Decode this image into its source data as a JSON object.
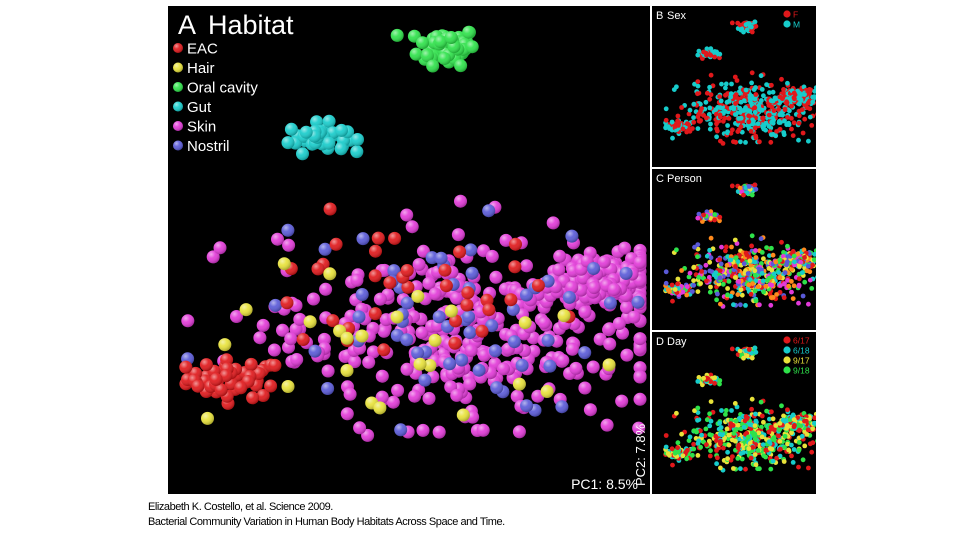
{
  "figure": {
    "panels": [
      {
        "id": "A",
        "title_letter": "A",
        "title": "Habitat",
        "x_axis_label": "PC1: 8.5%"
      },
      {
        "id": "B",
        "title_letter": "B",
        "title": "Sex"
      },
      {
        "id": "C",
        "title_letter": "C",
        "title": "Person"
      },
      {
        "id": "D",
        "title_letter": "D",
        "title": "Day",
        "y_axis_label": "PC2: 7.8%"
      }
    ]
  },
  "caption": {
    "line1": "Elizabeth K. Costello, et al. Science 2009.",
    "line2": "Bacterial Community Variation in Human Body Habitats Across Space and Time."
  },
  "chart_data": [
    {
      "type": "scatter",
      "panel": "A",
      "title": "A Habitat",
      "xlabel": "PC1: 8.5%",
      "ylabel": "PC2: 7.8%",
      "grid": false,
      "legend_position": "top-left",
      "series": [
        {
          "name": "EAC",
          "color": "#e0181b",
          "clusters": [
            {
              "cx": 0.14,
              "cy": -0.55,
              "sx": 0.05,
              "sy": 0.04,
              "n": 55
            },
            {
              "cx": 0.45,
              "cy": -0.2,
              "sx": 0.18,
              "sy": 0.15,
              "n": 35
            }
          ]
        },
        {
          "name": "Hair",
          "color": "#e8e23a",
          "clusters": [
            {
              "cx": 0.5,
              "cy": -0.45,
              "sx": 0.22,
              "sy": 0.18,
              "n": 25
            }
          ]
        },
        {
          "name": "Oral cavity",
          "color": "#2ee24a",
          "clusters": [
            {
              "cx": 0.58,
              "cy": 0.87,
              "sx": 0.03,
              "sy": 0.04,
              "n": 70
            }
          ]
        },
        {
          "name": "Gut",
          "color": "#17cccb",
          "clusters": [
            {
              "cx": 0.31,
              "cy": 0.48,
              "sx": 0.03,
              "sy": 0.03,
              "n": 45
            }
          ]
        },
        {
          "name": "Skin",
          "color": "#e23ad8",
          "clusters": [
            {
              "cx": 0.62,
              "cy": -0.35,
              "sx": 0.2,
              "sy": 0.2,
              "n": 360
            },
            {
              "cx": 0.9,
              "cy": -0.12,
              "sx": 0.05,
              "sy": 0.06,
              "n": 150
            }
          ]
        },
        {
          "name": "Nostril",
          "color": "#5a5ad8",
          "clusters": [
            {
              "cx": 0.55,
              "cy": -0.3,
              "sx": 0.18,
              "sy": 0.2,
              "n": 60
            }
          ]
        }
      ]
    },
    {
      "type": "scatter",
      "panel": "B",
      "title": "B Sex",
      "legend_position": "top-right",
      "series": [
        {
          "name": "F",
          "color": "#e0181b"
        },
        {
          "name": "M",
          "color": "#17cccb"
        }
      ]
    },
    {
      "type": "scatter",
      "panel": "C",
      "title": "C Person",
      "series": [
        {
          "name": "",
          "color": "#e0181b"
        },
        {
          "name": "",
          "color": "#17cccb"
        },
        {
          "name": "",
          "color": "#e8e23a"
        },
        {
          "name": "",
          "color": "#2ee24a"
        },
        {
          "name": "",
          "color": "#e23ad8"
        },
        {
          "name": "",
          "color": "#ff8a1c"
        },
        {
          "name": "",
          "color": "#5a5ad8"
        }
      ]
    },
    {
      "type": "scatter",
      "panel": "D",
      "title": "D Day",
      "legend_position": "top-right",
      "series": [
        {
          "name": "6/17",
          "color": "#e0181b"
        },
        {
          "name": "6/18",
          "color": "#17cccb"
        },
        {
          "name": "9/17",
          "color": "#e8e23a"
        },
        {
          "name": "9/18",
          "color": "#2ee24a"
        }
      ]
    }
  ]
}
